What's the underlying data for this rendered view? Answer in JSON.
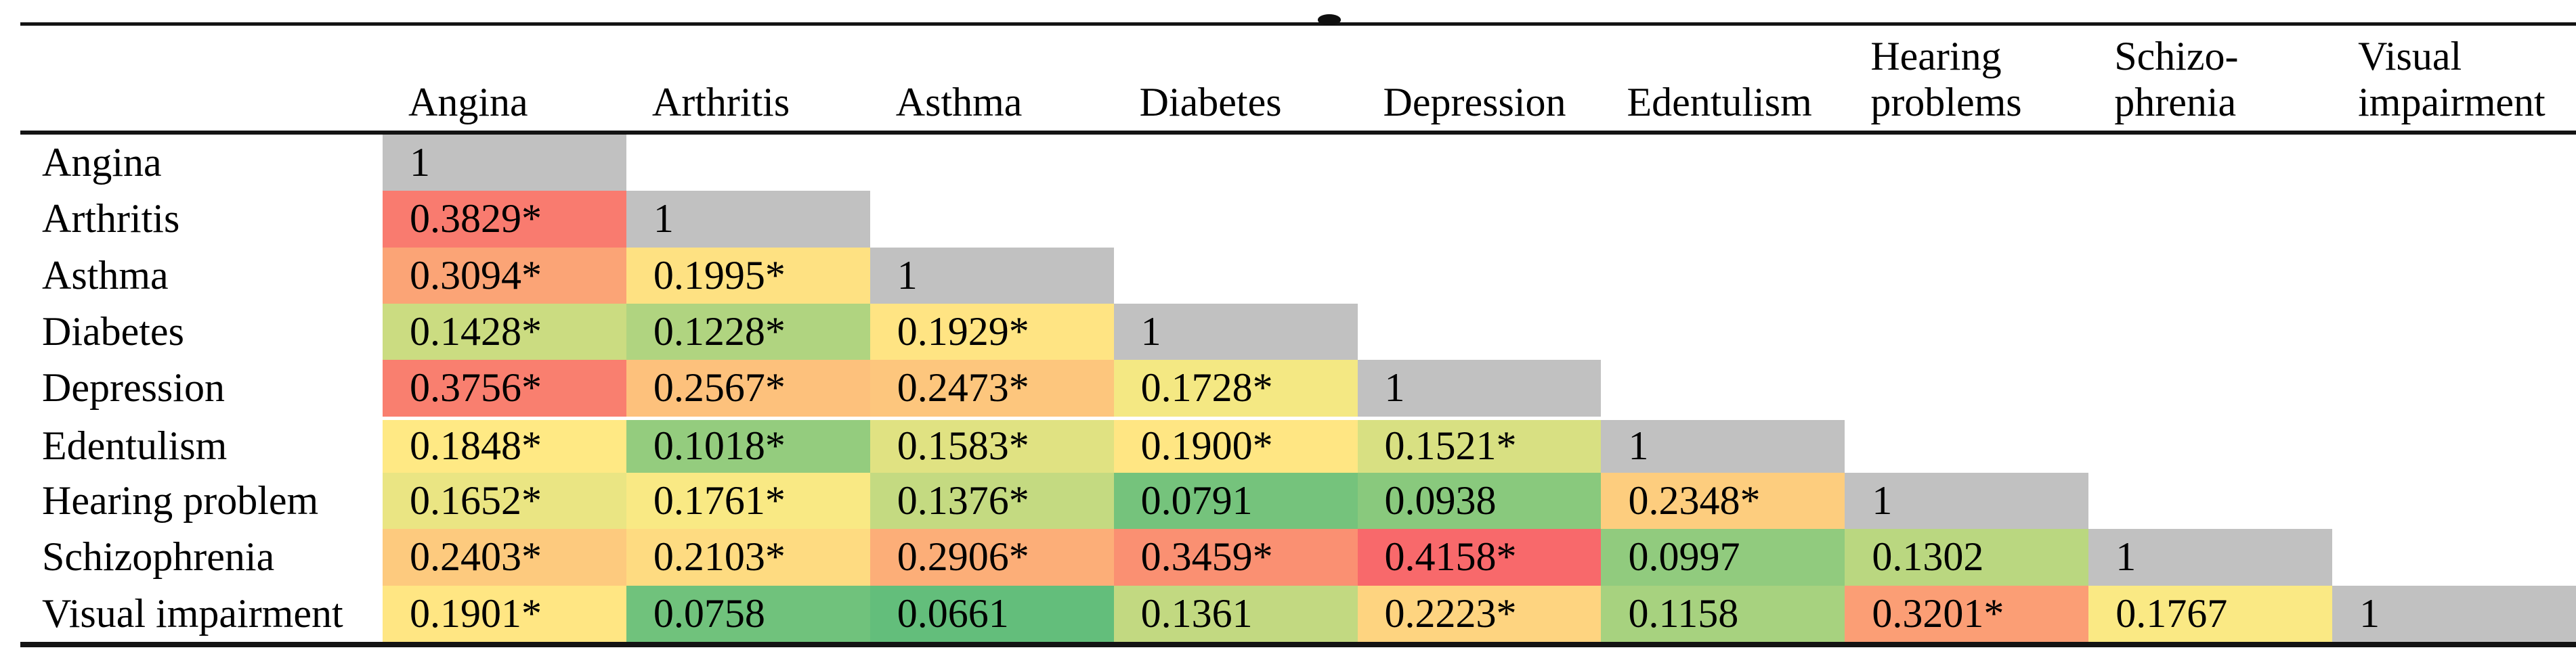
{
  "page": {
    "background": "#FFFFFF",
    "ink_color": "#141414",
    "diagonal_bg": "#C1C1C1"
  },
  "table": {
    "columns": [
      {
        "lines": [
          "Angina"
        ]
      },
      {
        "lines": [
          "Arthritis"
        ]
      },
      {
        "lines": [
          "Asthma"
        ]
      },
      {
        "lines": [
          "Diabetes"
        ]
      },
      {
        "lines": [
          "Depression"
        ]
      },
      {
        "lines": [
          "Edentulism"
        ]
      },
      {
        "lines": [
          "Hearing",
          "problems"
        ]
      },
      {
        "lines": [
          "Schizo-",
          "phrenia"
        ]
      },
      {
        "lines": [
          "Visual",
          "impairment"
        ]
      }
    ],
    "rows": [
      {
        "label": "Angina",
        "cells": [
          {
            "t": "1",
            "bg": "#C1C1C1"
          }
        ]
      },
      {
        "label": "Arthritis",
        "cells": [
          {
            "t": "0.3829*",
            "bg": "#F97B6F"
          },
          {
            "t": "1",
            "bg": "#C1C1C1"
          }
        ]
      },
      {
        "label": "Asthma",
        "cells": [
          {
            "t": "0.3094*",
            "bg": "#FBA476"
          },
          {
            "t": "0.1995*",
            "bg": "#FEE182"
          },
          {
            "t": "1",
            "bg": "#C1C1C1"
          }
        ]
      },
      {
        "label": "Diabetes",
        "cells": [
          {
            "t": "0.1428*",
            "bg": "#CBDC81"
          },
          {
            "t": "0.1228*",
            "bg": "#B0D480"
          },
          {
            "t": "0.1929*",
            "bg": "#FFE483"
          },
          {
            "t": "1",
            "bg": "#C1C1C1"
          }
        ]
      },
      {
        "label": "Depression",
        "cells": [
          {
            "t": "0.3756*",
            "bg": "#F97F6F"
          },
          {
            "t": "0.2567*",
            "bg": "#FDC17C"
          },
          {
            "t": "0.2473*",
            "bg": "#FDC67D"
          },
          {
            "t": "0.1728*",
            "bg": "#F4E883"
          },
          {
            "t": "1",
            "bg": "#C1C1C1"
          }
        ]
      },
      {
        "label": "Edentulism",
        "cells": [
          {
            "t": "0.1848*",
            "bg": "#FFE984"
          },
          {
            "t": "0.1018*",
            "bg": "#94CC7E"
          },
          {
            "t": "0.1583*",
            "bg": "#E0E282"
          },
          {
            "t": "0.1900*",
            "bg": "#FFE683"
          },
          {
            "t": "0.1521*",
            "bg": "#D8E082"
          },
          {
            "t": "1",
            "bg": "#C1C1C1"
          }
        ]
      },
      {
        "label": "Hearing problem",
        "cells": [
          {
            "t": "0.1652*",
            "bg": "#EAE583"
          },
          {
            "t": "0.1761*",
            "bg": "#F9E984"
          },
          {
            "t": "0.1376*",
            "bg": "#C4DA81"
          },
          {
            "t": "0.0791",
            "bg": "#75C37C"
          },
          {
            "t": "0.0938",
            "bg": "#89C97D"
          },
          {
            "t": "0.2348*",
            "bg": "#FDCD7E"
          },
          {
            "t": "1",
            "bg": "#C1C1C1"
          }
        ]
      },
      {
        "label": "Schizophrenia",
        "cells": [
          {
            "t": "0.2403*",
            "bg": "#FDCA7E"
          },
          {
            "t": "0.2103*",
            "bg": "#FEDB81"
          },
          {
            "t": "0.2906*",
            "bg": "#FCAE78"
          },
          {
            "t": "0.3459*",
            "bg": "#FA9072"
          },
          {
            "t": "0.4158*",
            "bg": "#F8696B"
          },
          {
            "t": "0.0997",
            "bg": "#91CB7E"
          },
          {
            "t": "0.1302",
            "bg": "#BAD780"
          },
          {
            "t": "1",
            "bg": "#C1C1C1"
          }
        ]
      },
      {
        "label": "Visual impairment",
        "cells": [
          {
            "t": "0.1901*",
            "bg": "#FFE683"
          },
          {
            "t": "0.0758",
            "bg": "#70C27C"
          },
          {
            "t": "0.0661",
            "bg": "#63BE7B"
          },
          {
            "t": "0.1361",
            "bg": "#C2D981"
          },
          {
            "t": "0.2223*",
            "bg": "#FED480"
          },
          {
            "t": "0.1158",
            "bg": "#A7D27F"
          },
          {
            "t": "0.3201*",
            "bg": "#FB9E75"
          },
          {
            "t": "0.1767",
            "bg": "#FAE984"
          },
          {
            "t": "1",
            "bg": "#C1C1C1"
          }
        ]
      }
    ]
  },
  "chart_data": {
    "type": "heatmap",
    "title": "",
    "rows": [
      "Angina",
      "Arthritis",
      "Asthma",
      "Diabetes",
      "Depression",
      "Edentulism",
      "Hearing problem",
      "Schizophrenia",
      "Visual impairment"
    ],
    "cols": [
      "Angina",
      "Arthritis",
      "Asthma",
      "Diabetes",
      "Depression",
      "Edentulism",
      "Hearing problems",
      "Schizophrenia",
      "Visual impairment"
    ],
    "matrix_lower_triangle": [
      [
        1
      ],
      [
        0.3829,
        1
      ],
      [
        0.3094,
        0.1995,
        1
      ],
      [
        0.1428,
        0.1228,
        0.1929,
        1
      ],
      [
        0.3756,
        0.2567,
        0.2473,
        0.1728,
        1
      ],
      [
        0.1848,
        0.1018,
        0.1583,
        0.19,
        0.1521,
        1
      ],
      [
        0.1652,
        0.1761,
        0.1376,
        0.0791,
        0.0938,
        0.2348,
        1
      ],
      [
        0.2403,
        0.2103,
        0.2906,
        0.3459,
        0.4158,
        0.0997,
        0.1302,
        1
      ],
      [
        0.1901,
        0.0758,
        0.0661,
        0.1361,
        0.2223,
        0.1158,
        0.3201,
        0.1767,
        1
      ]
    ],
    "starred_cells_note": "* marks shown on: 0.3829, 0.3094, 0.1995, 0.1428, 0.1228, 0.1929, 0.3756, 0.2567, 0.2473, 0.1728, 0.1848, 0.1018, 0.1583, 0.1900, 0.1521, 0.1652, 0.1761, 0.1376, 0.2348, 0.2403, 0.2103, 0.2906, 0.3459, 0.4158, 0.1901, 0.2223, 0.3201",
    "color_scale": {
      "min": "#63BE7B",
      "mid": "#FFEB84",
      "max": "#F8696B",
      "diagonal": "#C1C1C1"
    },
    "layout": "lower-triangle correlation matrix, diagonal = 1 on gray cells, cells colored green(low) to red(high)"
  }
}
